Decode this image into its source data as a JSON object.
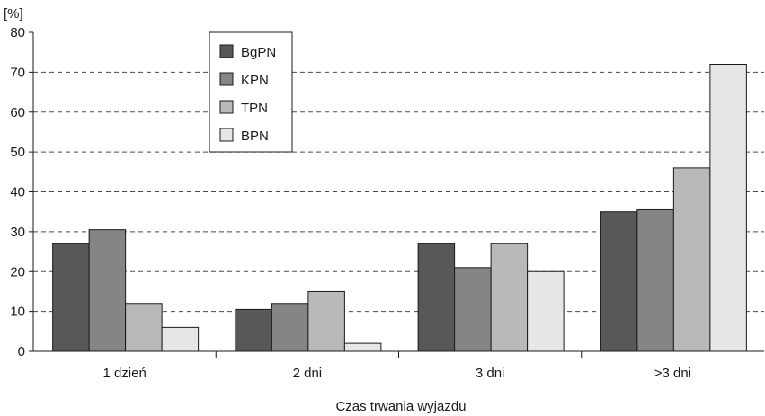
{
  "chart_data": {
    "type": "bar",
    "unit_label": "[%]",
    "xlabel": "Czas trwania wyjazdu",
    "ylabel": "",
    "ylim": [
      0,
      80
    ],
    "yticks": [
      0,
      10,
      20,
      30,
      40,
      50,
      60,
      70,
      80
    ],
    "grid": "horizontal-dashed",
    "legend_position": "top-left-inside",
    "categories": [
      "1 dzień",
      "2 dni",
      "3 dni",
      ">3 dni"
    ],
    "series": [
      {
        "name": "BgPN",
        "color": "#58585a",
        "values": [
          27,
          10.5,
          27,
          35
        ]
      },
      {
        "name": "KPN",
        "color": "#858587",
        "values": [
          30.5,
          12,
          21,
          35.5
        ]
      },
      {
        "name": "TPN",
        "color": "#b9b9bb",
        "values": [
          12,
          15,
          27,
          46
        ]
      },
      {
        "name": "BPN",
        "color": "#e6e6e8",
        "values": [
          6,
          2,
          20,
          72
        ]
      }
    ]
  }
}
